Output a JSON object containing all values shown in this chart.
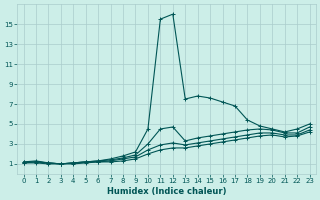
{
  "xlabel": "Humidex (Indice chaleur)",
  "bg_color": "#cceee8",
  "grid_color": "#aacccc",
  "line_color": "#005555",
  "xlim": [
    -0.5,
    23.5
  ],
  "ylim": [
    0,
    17
  ],
  "xticks": [
    0,
    1,
    2,
    3,
    4,
    5,
    6,
    7,
    8,
    9,
    10,
    11,
    12,
    13,
    14,
    15,
    16,
    17,
    18,
    19,
    20,
    21,
    22,
    23
  ],
  "yticks": [
    1,
    3,
    5,
    7,
    9,
    11,
    13,
    15
  ],
  "lines": [
    {
      "x": [
        0,
        1,
        2,
        3,
        4,
        5,
        6,
        7,
        8,
        9,
        10,
        11,
        12,
        13,
        14,
        15,
        16,
        17,
        18,
        19,
        20,
        21,
        22,
        23
      ],
      "y": [
        1.2,
        1.3,
        1.1,
        1.0,
        1.1,
        1.2,
        1.3,
        1.5,
        1.8,
        2.2,
        4.5,
        15.5,
        16.0,
        7.5,
        7.8,
        7.6,
        7.2,
        6.8,
        5.4,
        4.8,
        4.5,
        4.2,
        4.5,
        5.0
      ]
    },
    {
      "x": [
        0,
        1,
        2,
        3,
        4,
        5,
        6,
        7,
        8,
        9,
        10,
        11,
        12,
        13,
        14,
        15,
        16,
        17,
        18,
        19,
        20,
        21,
        22,
        23
      ],
      "y": [
        1.2,
        1.2,
        1.1,
        1.0,
        1.1,
        1.2,
        1.3,
        1.4,
        1.6,
        1.9,
        3.0,
        4.5,
        4.7,
        3.3,
        3.6,
        3.8,
        4.0,
        4.2,
        4.4,
        4.5,
        4.4,
        4.1,
        4.1,
        4.7
      ]
    },
    {
      "x": [
        0,
        1,
        2,
        3,
        4,
        5,
        6,
        7,
        8,
        9,
        10,
        11,
        12,
        13,
        14,
        15,
        16,
        17,
        18,
        19,
        20,
        21,
        22,
        23
      ],
      "y": [
        1.1,
        1.2,
        1.1,
        1.0,
        1.1,
        1.2,
        1.2,
        1.3,
        1.5,
        1.7,
        2.4,
        2.9,
        3.1,
        2.9,
        3.1,
        3.3,
        3.5,
        3.7,
        3.9,
        4.1,
        4.1,
        3.9,
        3.9,
        4.4
      ]
    },
    {
      "x": [
        0,
        1,
        2,
        3,
        4,
        5,
        6,
        7,
        8,
        9,
        10,
        11,
        12,
        13,
        14,
        15,
        16,
        17,
        18,
        19,
        20,
        21,
        22,
        23
      ],
      "y": [
        1.1,
        1.1,
        1.0,
        1.0,
        1.0,
        1.1,
        1.2,
        1.2,
        1.3,
        1.5,
        2.0,
        2.4,
        2.6,
        2.6,
        2.8,
        3.0,
        3.2,
        3.4,
        3.6,
        3.8,
        3.9,
        3.7,
        3.8,
        4.2
      ]
    }
  ],
  "marker": "+",
  "marker_size": 3.5,
  "line_width": 0.8,
  "label_fontsize": 6,
  "tick_fontsize": 5
}
